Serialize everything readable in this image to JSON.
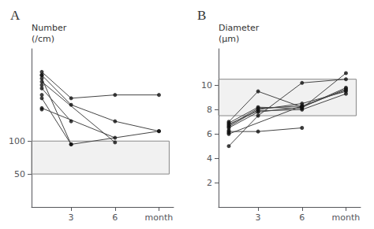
{
  "chart_data": [
    {
      "type": "scatter",
      "title": "A",
      "ylabel": [
        "Number",
        "(/cm)"
      ],
      "xlim": [
        0.3,
        10
      ],
      "ylim": [
        0,
        240
      ],
      "xticks": [
        3,
        6,
        {
          "value": 9,
          "label": "month"
        }
      ],
      "yticks": [
        50,
        100
      ],
      "grid": false,
      "band": {
        "x": [
          0.3,
          9.7
        ],
        "y": [
          50,
          100
        ],
        "color": "#888888"
      },
      "series": [
        {
          "type": "line",
          "color": "#444444",
          "x": [
            1,
            3,
            6,
            9
          ],
          "values": [
            205,
            165,
            170,
            170
          ]
        },
        {
          "type": "line",
          "color": "#444444",
          "x": [
            1,
            3,
            6,
            9
          ],
          "values": [
            200,
            155,
            130,
            115
          ]
        },
        {
          "type": "line",
          "color": "#444444",
          "x": [
            1,
            3,
            6,
            9
          ],
          "values": [
            195,
            95,
            105,
            115
          ]
        },
        {
          "type": "line",
          "color": "#444444",
          "x": [
            1,
            6
          ],
          "values": [
            190,
            98
          ]
        },
        {
          "type": "line",
          "color": "#444444",
          "x": [
            1,
            3
          ],
          "values": [
            180,
            130
          ]
        },
        {
          "type": "line",
          "color": "#444444",
          "x": [
            1,
            3
          ],
          "values": [
            165,
            95
          ]
        },
        {
          "type": "line",
          "color": "#444444",
          "x": [
            1,
            6
          ],
          "values": [
            150,
            105
          ]
        },
        {
          "type": "scatter",
          "color": "#111111",
          "x": [
            1,
            1,
            1,
            1,
            1,
            1,
            1,
            1,
            1,
            1,
            1
          ],
          "values": [
            205,
            200,
            200,
            195,
            190,
            185,
            180,
            170,
            165,
            150,
            148
          ]
        },
        {
          "type": "scatter",
          "color": "#111111",
          "x": [
            3,
            3,
            3,
            3,
            3
          ],
          "values": [
            165,
            155,
            130,
            95,
            95
          ]
        },
        {
          "type": "scatter",
          "color": "#111111",
          "x": [
            6,
            6,
            6,
            6
          ],
          "values": [
            170,
            130,
            105,
            98
          ]
        },
        {
          "type": "scatter",
          "color": "#111111",
          "x": [
            9,
            9,
            9
          ],
          "values": [
            170,
            115,
            115
          ]
        }
      ]
    },
    {
      "type": "scatter",
      "title": "B",
      "ylabel": [
        "Diameter",
        "(μm)"
      ],
      "xlim": [
        0.3,
        10
      ],
      "ylim": [
        0,
        13
      ],
      "xticks": [
        3,
        6,
        {
          "value": 9,
          "label": "month"
        }
      ],
      "yticks": [
        2,
        4,
        6,
        8,
        10
      ],
      "grid": false,
      "band": {
        "x": [
          0.3,
          9.7
        ],
        "y": [
          7.5,
          10.5
        ],
        "color": "#888888"
      },
      "series": [
        {
          "type": "line",
          "color": "#444444",
          "x": [
            1,
            3,
            6,
            9
          ],
          "values": [
            5.0,
            7.5,
            10.2,
            10.5
          ]
        },
        {
          "type": "line",
          "color": "#444444",
          "x": [
            1,
            3,
            6,
            9
          ],
          "values": [
            6.5,
            7.8,
            8.2,
            9.8
          ]
        },
        {
          "type": "line",
          "color": "#444444",
          "x": [
            1,
            3,
            6,
            9
          ],
          "values": [
            6.6,
            8.0,
            8.5,
            9.5
          ]
        },
        {
          "type": "line",
          "color": "#444444",
          "x": [
            1,
            3,
            6,
            9
          ],
          "values": [
            6.7,
            8.1,
            8.3,
            9.6
          ]
        },
        {
          "type": "line",
          "color": "#444444",
          "x": [
            1,
            3,
            6,
            9
          ],
          "values": [
            6.8,
            7.9,
            8.0,
            9.3
          ]
        },
        {
          "type": "line",
          "color": "#444444",
          "x": [
            1,
            3,
            6,
            9
          ],
          "values": [
            6.9,
            8.2,
            8.1,
            11.0
          ]
        },
        {
          "type": "line",
          "color": "#444444",
          "x": [
            1,
            3,
            6,
            9
          ],
          "values": [
            7.0,
            9.5,
            8.2,
            9.7
          ]
        },
        {
          "type": "line",
          "color": "#444444",
          "x": [
            1,
            3,
            6
          ],
          "values": [
            6.2,
            6.2,
            6.5
          ]
        },
        {
          "type": "line",
          "color": "#444444",
          "x": [
            1,
            6
          ],
          "values": [
            6.0,
            8.3
          ]
        },
        {
          "type": "scatter",
          "color": "#111111",
          "x": [
            1,
            1,
            1,
            1,
            1,
            1,
            1,
            1,
            1,
            1,
            1
          ],
          "values": [
            5.0,
            6.0,
            6.1,
            6.2,
            6.3,
            6.5,
            6.6,
            6.7,
            6.8,
            6.9,
            7.0
          ]
        },
        {
          "type": "scatter",
          "color": "#111111",
          "x": [
            3,
            3,
            3,
            3,
            3,
            3,
            3,
            3
          ],
          "values": [
            7.5,
            7.8,
            7.9,
            8.0,
            8.1,
            8.2,
            9.5,
            6.2
          ]
        },
        {
          "type": "scatter",
          "color": "#111111",
          "x": [
            6,
            6,
            6,
            6,
            6,
            6,
            6,
            6,
            6
          ],
          "values": [
            10.2,
            8.2,
            8.5,
            8.3,
            8.0,
            8.1,
            8.2,
            6.5,
            8.3
          ]
        },
        {
          "type": "scatter",
          "color": "#111111",
          "x": [
            9,
            9,
            9,
            9,
            9,
            9,
            9
          ],
          "values": [
            10.5,
            9.8,
            9.5,
            9.6,
            9.3,
            11.0,
            9.7
          ]
        }
      ]
    }
  ]
}
